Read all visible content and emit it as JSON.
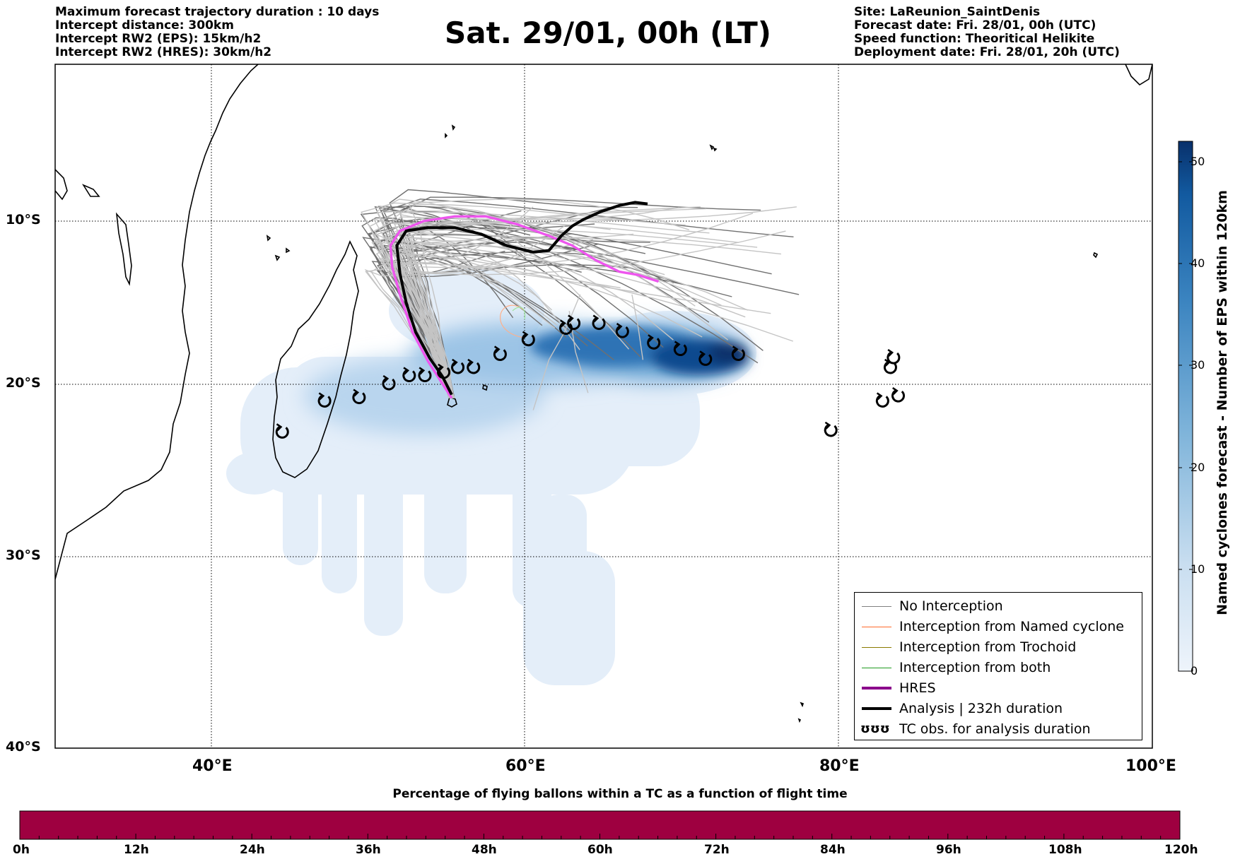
{
  "header": {
    "left": [
      "Maximum forecast trajectory duration : 10 days",
      "Intercept distance: 300km",
      "Intercept RW2 (EPS):  15km/h2",
      "Intercept RW2 (HRES): 30km/h2"
    ],
    "title": "Sat. 29/01, 00h (LT)",
    "right": [
      "Site: LaReunion_SaintDenis",
      "Forecast date: Fri. 28/01, 00h (UTC)",
      "Speed function: Theoritical Helikite",
      "Deployment date: Fri. 28/01, 20h (UTC)"
    ]
  },
  "map": {
    "lon_range": [
      30,
      100
    ],
    "lat_range": [
      -40,
      0
    ],
    "lat_labels": [
      "10°S",
      "20°S",
      "30°S",
      "40°S"
    ],
    "lon_labels": [
      "40°E",
      "60°E",
      "80°E",
      "100°E"
    ],
    "hres_color": "#ee55ee",
    "analysis_color": "#000000",
    "ensemble_color": "#808080"
  },
  "legend": {
    "items": [
      {
        "label": "No Interception",
        "color": "#808080"
      },
      {
        "label": "Interception from Named cyclone",
        "color": "#ff6a2a"
      },
      {
        "label": "Interception from Trochoid",
        "color": "#8a7a00"
      },
      {
        "label": "Interception from both",
        "color": "#1f9a1f"
      },
      {
        "label": "HRES",
        "color": "#8b008b"
      },
      {
        "label": "Analysis | 232h duration",
        "color": "#000000"
      },
      {
        "label": "TC obs. for analysis duration",
        "symbol": "ʊʊʊ"
      }
    ]
  },
  "colorbar_right": {
    "label": "Named cyclones forecast - Number of EPS within 120km",
    "ticks": [
      "0",
      "10",
      "20",
      "30",
      "40",
      "50"
    ],
    "range": [
      0,
      52
    ]
  },
  "colorbar_bottom": {
    "title": "Percentage of flying ballons within a TC as a function of flight time",
    "ticks": [
      "0h",
      "12h",
      "24h",
      "36h",
      "48h",
      "60h",
      "72h",
      "84h",
      "96h",
      "108h",
      "120h"
    ],
    "fill_color": "#9e0040"
  },
  "tc_obs": [
    [
      44.5,
      -22.8
    ],
    [
      47.2,
      -21
    ],
    [
      49.4,
      -20.8
    ],
    [
      51.3,
      -20
    ],
    [
      52.6,
      -19.5
    ],
    [
      53.6,
      -19.5
    ],
    [
      54.8,
      -19.3
    ],
    [
      55.7,
      -19
    ],
    [
      56.7,
      -19
    ],
    [
      58.4,
      -18.2
    ],
    [
      60.2,
      -17.3
    ],
    [
      62.6,
      -16.6
    ],
    [
      63.1,
      -16.3
    ],
    [
      64.7,
      -16.3
    ],
    [
      66.2,
      -16.8
    ],
    [
      68.2,
      -17.5
    ],
    [
      69.9,
      -17.9
    ],
    [
      71.5,
      -18.5
    ],
    [
      73.6,
      -18.2
    ],
    [
      79.5,
      -22.7
    ],
    [
      82.8,
      -21
    ],
    [
      83.3,
      -19
    ],
    [
      83.5,
      -18.4
    ],
    [
      83.8,
      -20.7
    ]
  ],
  "hres_track": [
    [
      55.3,
      -20.8
    ],
    [
      54.6,
      -19.8
    ],
    [
      53.8,
      -18.6
    ],
    [
      52.8,
      -16.8
    ],
    [
      52,
      -14.5
    ],
    [
      51.5,
      -12.8
    ],
    [
      51.4,
      -11.5
    ],
    [
      52,
      -10.6
    ],
    [
      53.5,
      -10
    ],
    [
      55.5,
      -9.7
    ],
    [
      57.5,
      -9.7
    ],
    [
      59.5,
      -10.2
    ],
    [
      61.5,
      -10.9
    ],
    [
      63,
      -11.5
    ],
    [
      64.5,
      -12.4
    ],
    [
      66,
      -13.1
    ],
    [
      67.2,
      -13.3
    ],
    [
      68.5,
      -13.7
    ]
  ],
  "analysis_track": [
    [
      55.3,
      -20.6
    ],
    [
      54.7,
      -19.5
    ],
    [
      53.9,
      -18.4
    ],
    [
      53,
      -16.8
    ],
    [
      52.4,
      -15
    ],
    [
      52,
      -13.2
    ],
    [
      51.8,
      -11.5
    ],
    [
      52.4,
      -10.6
    ],
    [
      53.8,
      -10.4
    ],
    [
      55.5,
      -10.4
    ],
    [
      57.2,
      -10.8
    ],
    [
      58.8,
      -11.5
    ],
    [
      60.5,
      -11.9
    ],
    [
      61.5,
      -11.8
    ],
    [
      62.3,
      -10.9
    ],
    [
      63,
      -10.3
    ],
    [
      63.7,
      -9.9
    ],
    [
      64.8,
      -9.4
    ],
    [
      66,
      -9
    ],
    [
      67,
      -8.8
    ],
    [
      67.8,
      -8.9
    ]
  ]
}
